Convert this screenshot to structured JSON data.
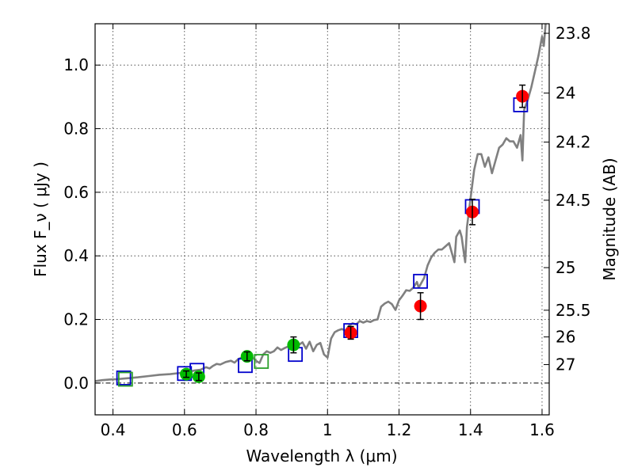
{
  "chart_data": {
    "type": "scatter",
    "xlabel": "Wavelength  λ (μm)",
    "ylabel": "Flux  F_ν  ( μJy )",
    "ylabel_right": "Magnitude (AB)",
    "xlim": [
      0.35,
      1.62
    ],
    "ylim": [
      -0.1,
      1.13
    ],
    "grid": true,
    "x_ticks": [
      0.4,
      0.6,
      0.8,
      1.0,
      1.2,
      1.4,
      1.6
    ],
    "x_tick_labels": [
      "0.4",
      "0.6",
      "0.8",
      "1",
      "1.2",
      "1.4",
      "1.6"
    ],
    "y_ticks": [
      0.0,
      0.2,
      0.4,
      0.6,
      0.8,
      1.0
    ],
    "y_tick_labels": [
      "0.0",
      "0.2",
      "0.4",
      "0.6",
      "0.8",
      "1.0"
    ],
    "right_ticks": [
      {
        "label": "23.8",
        "flux": 1.1
      },
      {
        "label": "24",
        "flux": 0.912
      },
      {
        "label": "24.2",
        "flux": 0.758
      },
      {
        "label": "24.5",
        "flux": 0.575
      },
      {
        "label": "25",
        "flux": 0.363
      },
      {
        "label": "25.5",
        "flux": 0.229
      },
      {
        "label": "26",
        "flux": 0.145
      },
      {
        "label": "27",
        "flux": 0.058
      }
    ],
    "series": [
      {
        "kind": "line",
        "color": "#808080",
        "points": [
          [
            0.35,
            0.006
          ],
          [
            0.37,
            0.009
          ],
          [
            0.39,
            0.011
          ],
          [
            0.41,
            0.012
          ],
          [
            0.43,
            0.014
          ],
          [
            0.45,
            0.016
          ],
          [
            0.47,
            0.018
          ],
          [
            0.5,
            0.022
          ],
          [
            0.53,
            0.026
          ],
          [
            0.56,
            0.028
          ],
          [
            0.59,
            0.032
          ],
          [
            0.61,
            0.035
          ],
          [
            0.63,
            0.04
          ],
          [
            0.645,
            0.042
          ],
          [
            0.66,
            0.05
          ],
          [
            0.67,
            0.046
          ],
          [
            0.68,
            0.054
          ],
          [
            0.69,
            0.06
          ],
          [
            0.7,
            0.058
          ],
          [
            0.715,
            0.066
          ],
          [
            0.73,
            0.07
          ],
          [
            0.74,
            0.064
          ],
          [
            0.75,
            0.075
          ],
          [
            0.76,
            0.08
          ],
          [
            0.77,
            0.085
          ],
          [
            0.78,
            0.078
          ],
          [
            0.79,
            0.08
          ],
          [
            0.8,
            0.07
          ],
          [
            0.81,
            0.063
          ],
          [
            0.82,
            0.09
          ],
          [
            0.83,
            0.1
          ],
          [
            0.84,
            0.095
          ],
          [
            0.85,
            0.1
          ],
          [
            0.86,
            0.112
          ],
          [
            0.87,
            0.104
          ],
          [
            0.88,
            0.11
          ],
          [
            0.89,
            0.115
          ],
          [
            0.9,
            0.11
          ],
          [
            0.91,
            0.118
          ],
          [
            0.92,
            0.12
          ],
          [
            0.93,
            0.128
          ],
          [
            0.94,
            0.108
          ],
          [
            0.95,
            0.13
          ],
          [
            0.96,
            0.1
          ],
          [
            0.97,
            0.12
          ],
          [
            0.98,
            0.126
          ],
          [
            0.99,
            0.09
          ],
          [
            1.0,
            0.08
          ],
          [
            1.01,
            0.14
          ],
          [
            1.02,
            0.16
          ],
          [
            1.03,
            0.166
          ],
          [
            1.04,
            0.17
          ],
          [
            1.05,
            0.165
          ],
          [
            1.06,
            0.18
          ],
          [
            1.07,
            0.188
          ],
          [
            1.08,
            0.184
          ],
          [
            1.09,
            0.195
          ],
          [
            1.1,
            0.19
          ],
          [
            1.11,
            0.195
          ],
          [
            1.12,
            0.192
          ],
          [
            1.13,
            0.198
          ],
          [
            1.14,
            0.2
          ],
          [
            1.15,
            0.24
          ],
          [
            1.16,
            0.25
          ],
          [
            1.17,
            0.256
          ],
          [
            1.18,
            0.248
          ],
          [
            1.19,
            0.23
          ],
          [
            1.2,
            0.26
          ],
          [
            1.21,
            0.275
          ],
          [
            1.22,
            0.292
          ],
          [
            1.23,
            0.29
          ],
          [
            1.24,
            0.3
          ],
          [
            1.25,
            0.318
          ],
          [
            1.255,
            0.3
          ],
          [
            1.26,
            0.31
          ],
          [
            1.27,
            0.33
          ],
          [
            1.28,
            0.37
          ],
          [
            1.29,
            0.395
          ],
          [
            1.3,
            0.41
          ],
          [
            1.31,
            0.42
          ],
          [
            1.32,
            0.42
          ],
          [
            1.33,
            0.43
          ],
          [
            1.34,
            0.44
          ],
          [
            1.35,
            0.4
          ],
          [
            1.355,
            0.38
          ],
          [
            1.36,
            0.46
          ],
          [
            1.37,
            0.48
          ],
          [
            1.375,
            0.46
          ],
          [
            1.38,
            0.42
          ],
          [
            1.385,
            0.38
          ],
          [
            1.39,
            0.49
          ],
          [
            1.4,
            0.58
          ],
          [
            1.41,
            0.67
          ],
          [
            1.42,
            0.72
          ],
          [
            1.43,
            0.72
          ],
          [
            1.44,
            0.68
          ],
          [
            1.45,
            0.71
          ],
          [
            1.46,
            0.66
          ],
          [
            1.47,
            0.7
          ],
          [
            1.48,
            0.74
          ],
          [
            1.49,
            0.75
          ],
          [
            1.5,
            0.77
          ],
          [
            1.51,
            0.76
          ],
          [
            1.52,
            0.76
          ],
          [
            1.53,
            0.74
          ],
          [
            1.54,
            0.78
          ],
          [
            1.545,
            0.7
          ],
          [
            1.55,
            0.86
          ],
          [
            1.56,
            0.89
          ],
          [
            1.57,
            0.93
          ],
          [
            1.58,
            0.98
          ],
          [
            1.59,
            1.03
          ],
          [
            1.6,
            1.09
          ],
          [
            1.605,
            1.06
          ],
          [
            1.61,
            1.13
          ]
        ]
      },
      {
        "kind": "open-square",
        "color": "#0000cc",
        "points": [
          [
            0.43,
            0.016
          ],
          [
            0.6,
            0.03
          ],
          [
            0.635,
            0.04
          ],
          [
            0.77,
            0.055
          ],
          [
            0.91,
            0.09
          ],
          [
            1.065,
            0.165
          ],
          [
            1.26,
            0.32
          ],
          [
            1.405,
            0.555
          ],
          [
            1.54,
            0.875
          ]
        ]
      },
      {
        "kind": "open-square",
        "color": "#2ca02c",
        "points": [
          [
            0.435,
            0.012
          ],
          [
            0.815,
            0.068
          ]
        ]
      },
      {
        "kind": "point",
        "color": "#00bb00",
        "points": [
          {
            "x": 0.605,
            "y": 0.028,
            "err": 0.01
          },
          {
            "x": 0.64,
            "y": 0.02,
            "err": 0.012
          },
          {
            "x": 0.775,
            "y": 0.084,
            "err": 0.014
          },
          {
            "x": 0.905,
            "y": 0.12,
            "err": 0.025
          }
        ]
      },
      {
        "kind": "point",
        "color": "#ff0000",
        "points": [
          {
            "x": 1.065,
            "y": 0.158,
            "err": 0.02
          },
          {
            "x": 1.26,
            "y": 0.242,
            "err": 0.042
          },
          {
            "x": 1.405,
            "y": 0.538,
            "err": 0.04
          },
          {
            "x": 1.545,
            "y": 0.902,
            "err": 0.035
          }
        ]
      }
    ]
  }
}
